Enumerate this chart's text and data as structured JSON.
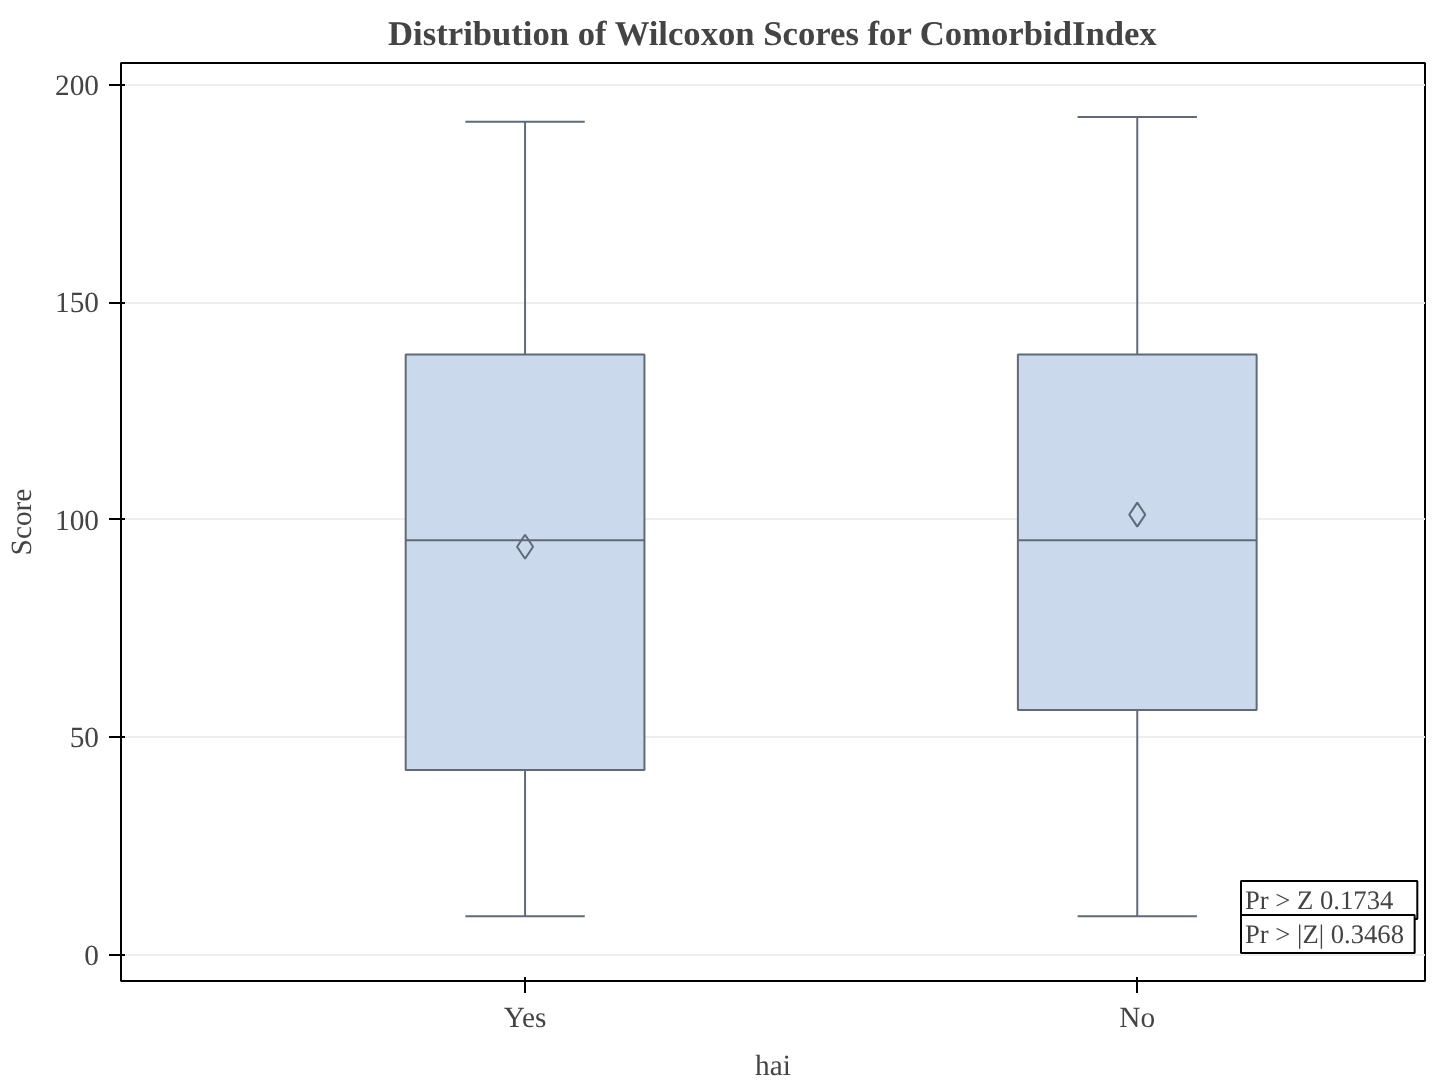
{
  "chart_data": {
    "type": "box",
    "title": "Distribution of Wilcoxon Scores for ComorbidIndex",
    "xlabel": "hai",
    "ylabel": "Score",
    "categories": [
      "Yes",
      "No"
    ],
    "series": [
      {
        "color": "#cad9ec",
        "boxes": [
          {
            "low": 8.9,
            "q1": 42.5,
            "median": 95.3,
            "q3": 138,
            "high": 191.5,
            "mean": 93.8
          },
          {
            "low": 8.9,
            "q1": 56.3,
            "median": 95.3,
            "q3": 138,
            "high": 192.6,
            "mean": 101.2
          }
        ]
      }
    ],
    "ylim": [
      -6,
      205
    ],
    "yticks": [
      0,
      50,
      100,
      150,
      200
    ],
    "grid": "y",
    "marker": "diamond",
    "annotations": [
      "Pr > Z    0.1734",
      "Pr > |Z|  0.3468"
    ]
  }
}
